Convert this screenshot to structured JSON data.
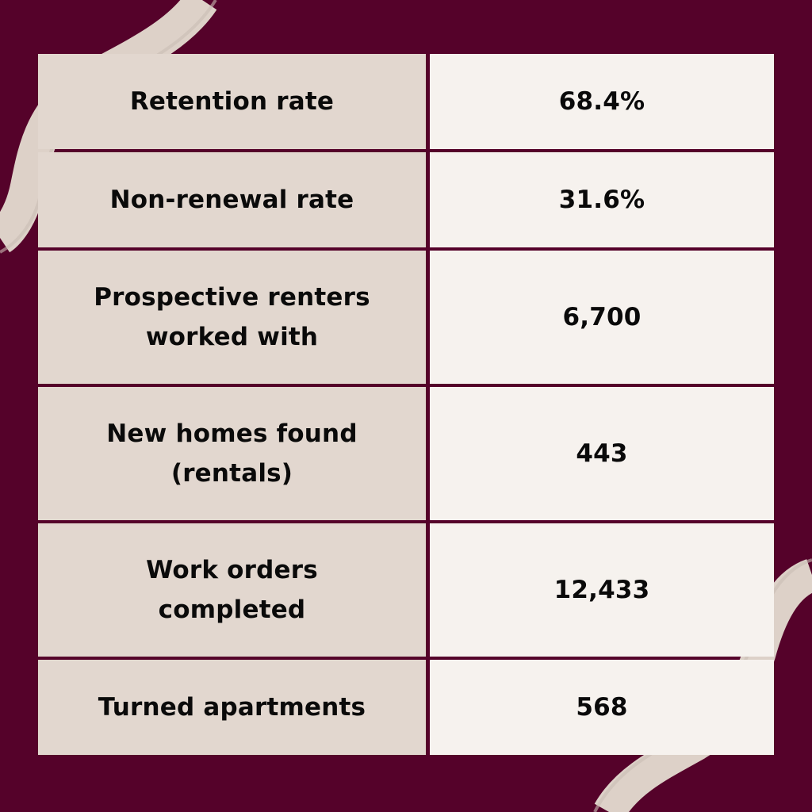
{
  "colors": {
    "background": "#55022a",
    "wave": "#ddd1c8",
    "label_cell": "#e2d7cf",
    "value_cell": "#f6f2ee",
    "text": "#0a0a0a"
  },
  "rows": [
    {
      "label": "Retention rate",
      "value": "68.4%"
    },
    {
      "label": "Non-renewal rate",
      "value": "31.6%"
    },
    {
      "label": "Prospective renters worked with",
      "value": "6,700"
    },
    {
      "label": "New homes found (rentals)",
      "value": "443"
    },
    {
      "label": "Work orders completed",
      "value": "12,433"
    },
    {
      "label": "Turned apartments",
      "value": "568"
    }
  ]
}
